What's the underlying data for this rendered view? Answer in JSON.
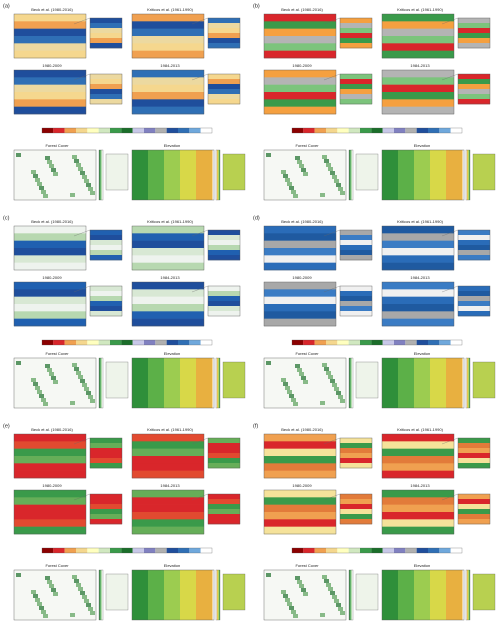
{
  "panels": [
    {
      "label": "(a)",
      "maps": [
        "Beck et al. (1980-2016)",
        "Kriticos et al. (1961-1990)",
        "1980-2009",
        "1984-2013"
      ],
      "forest_title": "Forest Cover",
      "elevation_title": "Elevation"
    },
    {
      "label": "(b)",
      "maps": [
        "Beck et al. (1980-2016)",
        "Kriticos et al. (1961-1990)",
        "1980-2009",
        "1984-2013"
      ],
      "forest_title": "Forest Cover",
      "elevation_title": "Elevation"
    },
    {
      "label": "(c)",
      "maps": [
        "Beck et al. (1980-2016)",
        "Kriticos et al. (1961-1990)",
        "1980-2009",
        "1984-2013"
      ],
      "forest_title": "Forest Cover",
      "elevation_title": "Elevation"
    },
    {
      "label": "(d)",
      "maps": [
        "Beck et al. (1980-2016)",
        "Kriticos et al. (1961-1990)",
        "1980-2009",
        "1984-2013"
      ],
      "forest_title": "Forest Cover",
      "elevation_title": "Elevation"
    },
    {
      "label": "(e)",
      "maps": [
        "Beck et al. (1980-2016)",
        "Kriticos et al. (1961-1990)",
        "1980-2009",
        "1984-2013"
      ],
      "forest_title": "Forest Cover",
      "elevation_title": "Elevation"
    },
    {
      "label": "(f)",
      "maps": [
        "Beck et al. (1980-2016)",
        "Kriticos et al. (1961-1990)",
        "1980-2009",
        "1984-2013"
      ],
      "forest_title": "Forest Cover",
      "elevation_title": "Elevation"
    }
  ]
}
